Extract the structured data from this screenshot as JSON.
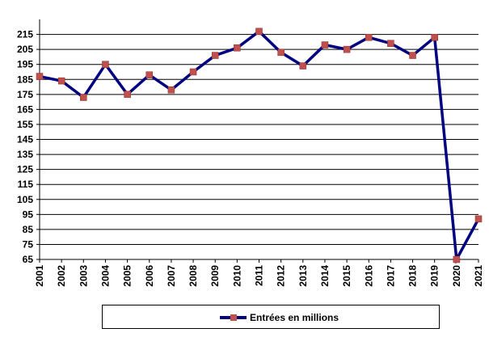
{
  "chart_data": {
    "type": "line",
    "categories": [
      "2001",
      "2002",
      "2003",
      "2004",
      "2005",
      "2006",
      "2007",
      "2008",
      "2009",
      "2010",
      "2011",
      "2012",
      "2013",
      "2014",
      "2015",
      "2016",
      "2017",
      "2018",
      "2019",
      "2020",
      "2021"
    ],
    "series": [
      {
        "name": "Entrées en millions",
        "values": [
          187,
          184,
          173,
          195,
          175,
          188,
          178,
          190,
          201,
          206,
          217,
          203,
          194,
          208,
          205,
          213,
          209,
          201,
          213,
          65,
          92
        ]
      }
    ],
    "y_ticks": [
      65,
      75,
      85,
      95,
      105,
      115,
      125,
      135,
      145,
      155,
      165,
      175,
      185,
      195,
      205,
      215
    ],
    "ylim": [
      65,
      225
    ],
    "grid": "horizontal",
    "legend_position": "bottom",
    "title": "",
    "xlabel": "",
    "ylabel": "",
    "colors": {
      "line": "#000080",
      "marker": "#C0504D",
      "grid": "#000000",
      "background": "#ffffff"
    }
  }
}
